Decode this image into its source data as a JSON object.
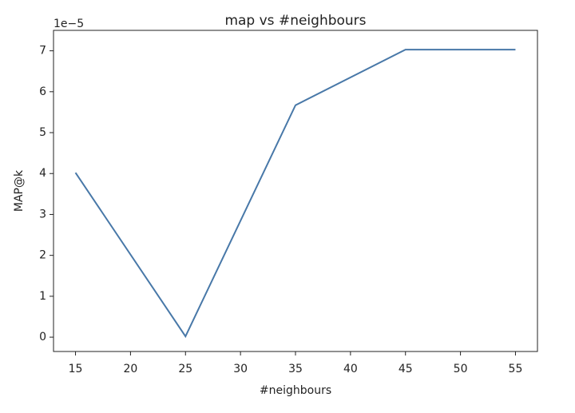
{
  "chart_data": {
    "type": "line",
    "title": "map vs #neighbours",
    "x_label": "#neighbours",
    "y_label": "MAP@k",
    "y_offset_label": "1e−5",
    "x": [
      15,
      25,
      35,
      45,
      55
    ],
    "series": [
      {
        "name": "MAP@k",
        "color": "#4878a8",
        "values": [
          4.02,
          0.02,
          5.67,
          7.03,
          7.03
        ]
      }
    ],
    "xlim": [
      13,
      57
    ],
    "xticks": [
      15,
      20,
      25,
      30,
      35,
      40,
      45,
      50,
      55
    ],
    "ylim": [
      -0.35,
      7.5
    ],
    "yticks": [
      0,
      1,
      2,
      3,
      4,
      5,
      6,
      7
    ],
    "grid": false
  }
}
